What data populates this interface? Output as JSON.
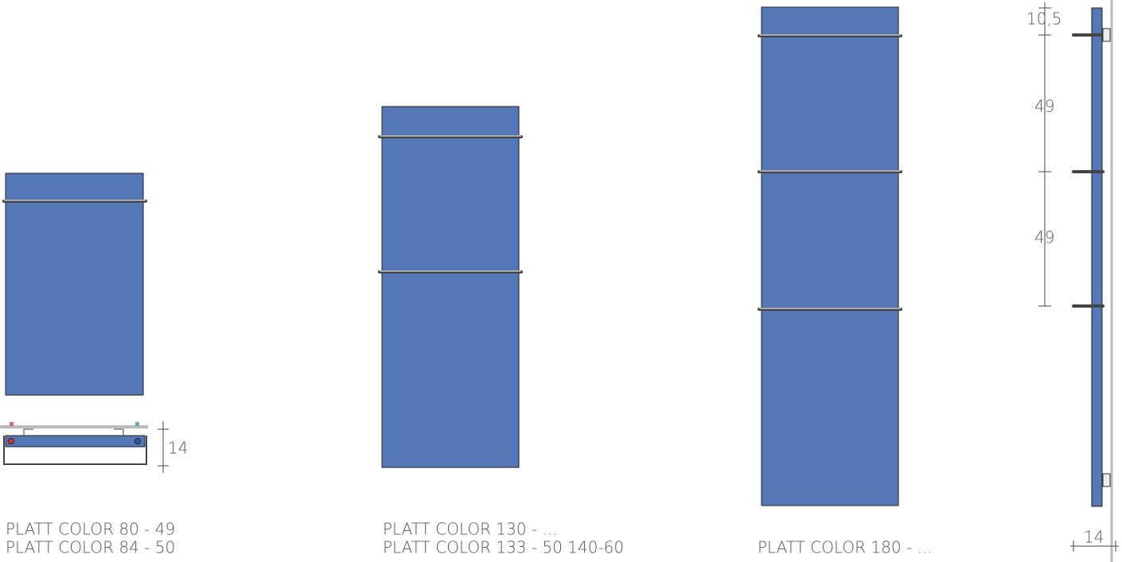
{
  "dimensions": {
    "top_offset": "10,5",
    "spacing_1": "49",
    "spacing_2": "49",
    "side_depth": "14",
    "bottom_depth": "14"
  },
  "models": [
    {
      "lines": [
        "PLATT COLOR  80 - 49",
        "PLATT COLOR  84 - 50"
      ]
    },
    {
      "lines": [
        "PLATT COLOR 130 - ...",
        "PLATT COLOR 133 - 50  140-60"
      ]
    },
    {
      "lines": [
        "PLATT COLOR 180 - ..."
      ]
    }
  ]
}
